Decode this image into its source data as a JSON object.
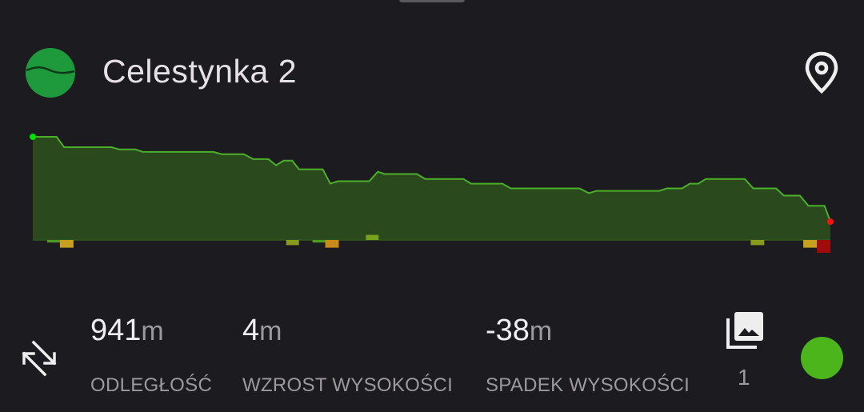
{
  "header": {
    "title": "Celestynka 2",
    "logo_icon": "track-logo-icon",
    "location_icon": "map-pin-icon"
  },
  "chart_data": {
    "type": "area",
    "title": "",
    "xlabel": "",
    "ylabel": "",
    "x_unit": "m",
    "grid": false,
    "points": [
      [
        0,
        0
      ],
      [
        28,
        0
      ],
      [
        37,
        -4.2
      ],
      [
        93,
        -4.2
      ],
      [
        102,
        -5.1
      ],
      [
        121,
        -5.1
      ],
      [
        130,
        -6.1
      ],
      [
        213,
        -6.1
      ],
      [
        223,
        -7.0
      ],
      [
        249,
        -7.0
      ],
      [
        260,
        -9.0
      ],
      [
        278,
        -9.0
      ],
      [
        287,
        -11.5
      ],
      [
        296,
        -9.6
      ],
      [
        306,
        -9.6
      ],
      [
        314,
        -13.1
      ],
      [
        342,
        -13.1
      ],
      [
        351,
        -18.9
      ],
      [
        360,
        -17.9
      ],
      [
        397,
        -17.9
      ],
      [
        407,
        -14.1
      ],
      [
        415,
        -15.0
      ],
      [
        453,
        -15.0
      ],
      [
        463,
        -17.0
      ],
      [
        508,
        -17.0
      ],
      [
        517,
        -18.9
      ],
      [
        554,
        -18.9
      ],
      [
        564,
        -20.8
      ],
      [
        645,
        -20.8
      ],
      [
        656,
        -22.7
      ],
      [
        665,
        -21.8
      ],
      [
        739,
        -21.8
      ],
      [
        748,
        -20.8
      ],
      [
        766,
        -20.8
      ],
      [
        775,
        -18.9
      ],
      [
        785,
        -18.9
      ],
      [
        794,
        -17.0
      ],
      [
        840,
        -17.0
      ],
      [
        850,
        -20.8
      ],
      [
        877,
        -20.8
      ],
      [
        886,
        -23.7
      ],
      [
        905,
        -23.7
      ],
      [
        915,
        -27.8
      ],
      [
        934,
        -27.8
      ],
      [
        941,
        -34.2
      ]
    ],
    "start_marker_color": "#00e000",
    "end_marker_color": "#ff1010",
    "line_color": "#4caf2a",
    "fill_color": "#2a4a1e",
    "grade_segments": [
      {
        "from": 17,
        "to": 32,
        "dir": "down",
        "level": 1,
        "color": "#4e9a22"
      },
      {
        "from": 32,
        "to": 48,
        "dir": "down",
        "level": 3,
        "color": "#c8a020"
      },
      {
        "from": 299,
        "to": 314,
        "dir": "down",
        "level": 2,
        "color": "#8a9a20"
      },
      {
        "from": 330,
        "to": 345,
        "dir": "down",
        "level": 1,
        "color": "#4e9a22"
      },
      {
        "from": 345,
        "to": 361,
        "dir": "down",
        "level": 3,
        "color": "#c88a18"
      },
      {
        "from": 393,
        "to": 408,
        "dir": "up",
        "level": 2,
        "color": "#7aa020"
      },
      {
        "from": 847,
        "to": 863,
        "dir": "down",
        "level": 2,
        "color": "#8a9a20"
      },
      {
        "from": 909,
        "to": 925,
        "dir": "down",
        "level": 3,
        "color": "#c8a020"
      },
      {
        "from": 925,
        "to": 941,
        "dir": "down",
        "level": 5,
        "color": "#a00c0c"
      }
    ]
  },
  "stats": {
    "swap_icon": "reverse-direction-icon",
    "distance": {
      "value": "941",
      "unit": "m",
      "label": "ODLEGŁOŚĆ"
    },
    "gain": {
      "value": "4",
      "unit": "m",
      "label": "WZROST WYSOKOŚCI"
    },
    "loss": {
      "value": "-38",
      "unit": "m",
      "label": "SPADEK WYSOKOŚCI"
    },
    "photos": {
      "icon": "photo-library-icon",
      "count": "1"
    },
    "color_dot": "#4cb51c"
  }
}
